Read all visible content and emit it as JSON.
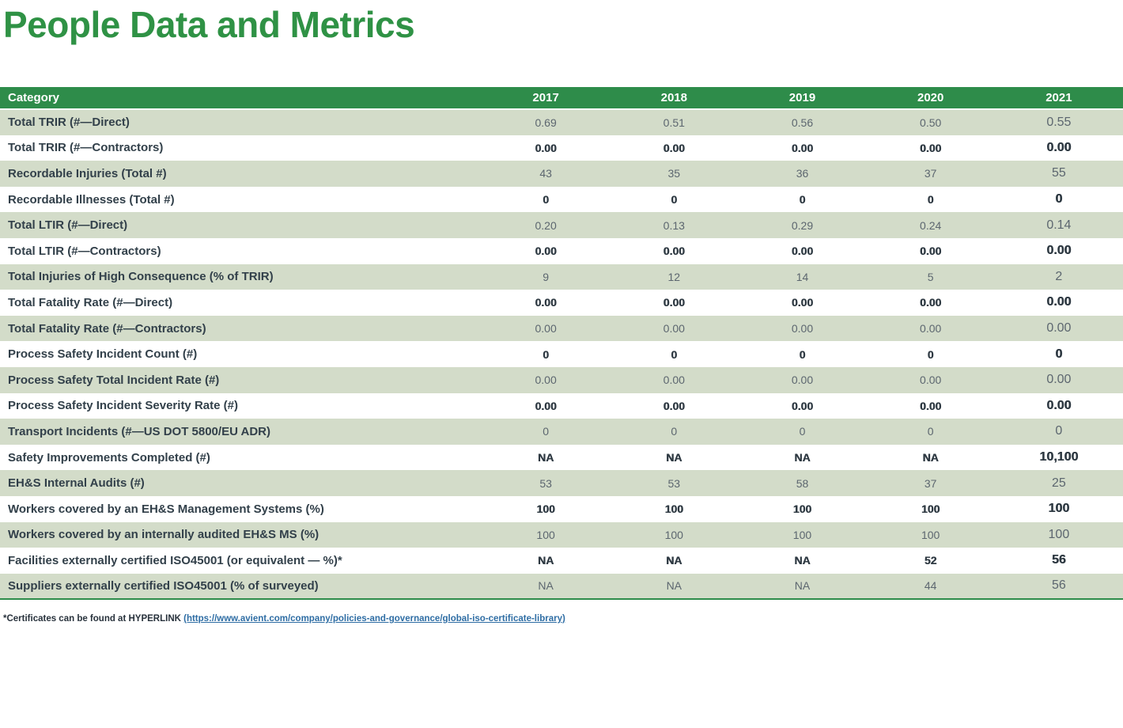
{
  "page": {
    "title": "People Data and Metrics"
  },
  "table": {
    "header": {
      "category": "Category",
      "years": [
        "2017",
        "2018",
        "2019",
        "2020",
        "2021"
      ]
    },
    "rows": [
      {
        "category": "Total TRIR (#—Direct)",
        "values": [
          "0.69",
          "0.51",
          "0.56",
          "0.50",
          "0.55"
        ]
      },
      {
        "category": "Total TRIR (#—Contractors)",
        "values": [
          "0.00",
          "0.00",
          "0.00",
          "0.00",
          "0.00"
        ]
      },
      {
        "category": "Recordable Injuries (Total #)",
        "values": [
          "43",
          "35",
          "36",
          "37",
          "55"
        ]
      },
      {
        "category": "Recordable Illnesses (Total #)",
        "values": [
          "0",
          "0",
          "0",
          "0",
          "0"
        ]
      },
      {
        "category": "Total LTIR (#—Direct)",
        "values": [
          "0.20",
          "0.13",
          "0.29",
          "0.24",
          "0.14"
        ]
      },
      {
        "category": "Total LTIR (#—Contractors)",
        "values": [
          "0.00",
          "0.00",
          "0.00",
          "0.00",
          "0.00"
        ]
      },
      {
        "category": "Total Injuries of High Consequence (% of TRIR)",
        "values": [
          "9",
          "12",
          "14",
          "5",
          "2"
        ]
      },
      {
        "category": "Total Fatality Rate (#—Direct)",
        "values": [
          "0.00",
          "0.00",
          "0.00",
          "0.00",
          "0.00"
        ]
      },
      {
        "category": "Total Fatality Rate (#—Contractors)",
        "values": [
          "0.00",
          "0.00",
          "0.00",
          "0.00",
          "0.00"
        ]
      },
      {
        "category": "Process Safety Incident Count (#)",
        "values": [
          "0",
          "0",
          "0",
          "0",
          "0"
        ]
      },
      {
        "category": "Process Safety Total Incident Rate (#)",
        "values": [
          "0.00",
          "0.00",
          "0.00",
          "0.00",
          "0.00"
        ]
      },
      {
        "category": "Process Safety Incident Severity Rate (#)",
        "values": [
          "0.00",
          "0.00",
          "0.00",
          "0.00",
          "0.00"
        ]
      },
      {
        "category": "Transport Incidents (#—US DOT 5800/EU ADR)",
        "values": [
          "0",
          "0",
          "0",
          "0",
          "0"
        ]
      },
      {
        "category": "Safety Improvements Completed (#)",
        "values": [
          "NA",
          "NA",
          "NA",
          "NA",
          "10,100"
        ]
      },
      {
        "category": "EH&S Internal Audits (#)",
        "values": [
          "53",
          "53",
          "58",
          "37",
          "25"
        ]
      },
      {
        "category": "Workers covered by an EH&S Management Systems (%)",
        "values": [
          "100",
          "100",
          "100",
          "100",
          "100"
        ]
      },
      {
        "category": "Workers covered by an internally audited EH&S MS (%)",
        "values": [
          "100",
          "100",
          "100",
          "100",
          "100"
        ]
      },
      {
        "category": "Facilities externally certified ISO45001 (or equivalent — %)*",
        "values": [
          "NA",
          "NA",
          "NA",
          "52",
          "56"
        ]
      },
      {
        "category": "Suppliers externally certified ISO45001 (% of surveyed)",
        "values": [
          "NA",
          "NA",
          "NA",
          "44",
          "56"
        ]
      }
    ]
  },
  "footnote": {
    "prefix": "*Certificates can be found at HYPERLINK ",
    "link_text": "(https://www.avient.com/company/policies-and-governance/global-iso-certificate-library)"
  },
  "colors": {
    "title_green": "#2F9245",
    "header_green": "#2E8C4A",
    "row_green": "#D3DCC9",
    "category_text": "#32404A",
    "value_text_green_row": "#5C666F",
    "value_text_white_row": "#2E3942",
    "link_blue": "#2E6DA4",
    "footnote_text": "#28323C"
  }
}
